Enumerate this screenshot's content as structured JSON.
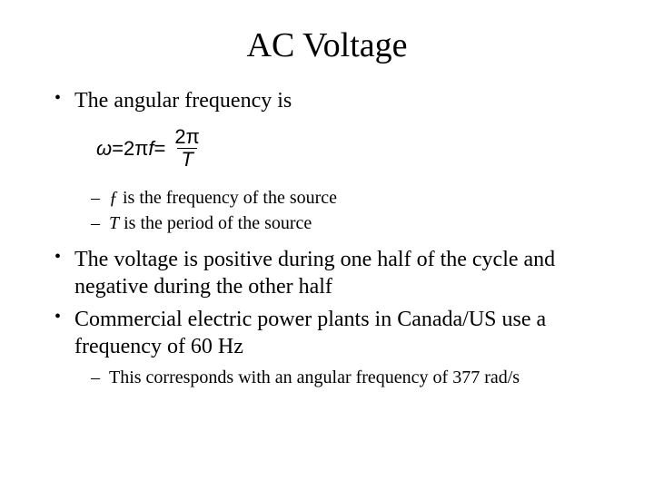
{
  "title": "AC Voltage",
  "bullets": {
    "b1": "The angular frequency is",
    "b2": "The voltage is positive during one half of the cycle and negative during the other half",
    "b3": "Commercial electric power plants in Canada/US use a frequency of 60 Hz"
  },
  "subA": {
    "s1_prefix": "ƒ",
    "s1_rest": " is the frequency of the source",
    "s2_prefix": "T",
    "s2_rest": " is the period of the source"
  },
  "subB": {
    "s1": "This corresponds with an angular frequency of 377 rad/s"
  },
  "formula": {
    "omega": "ω",
    "eq1": " = ",
    "twopi": "2π",
    "f": " f",
    "eq2": " = ",
    "num": "2π",
    "den": "T"
  },
  "style": {
    "background": "#ffffff",
    "text_color": "#000000",
    "title_fontsize": 38,
    "bullet_fontsize": 24,
    "sub_fontsize": 20,
    "formula_fontsize": 22,
    "formula_font": "Arial",
    "body_font": "Times New Roman"
  }
}
